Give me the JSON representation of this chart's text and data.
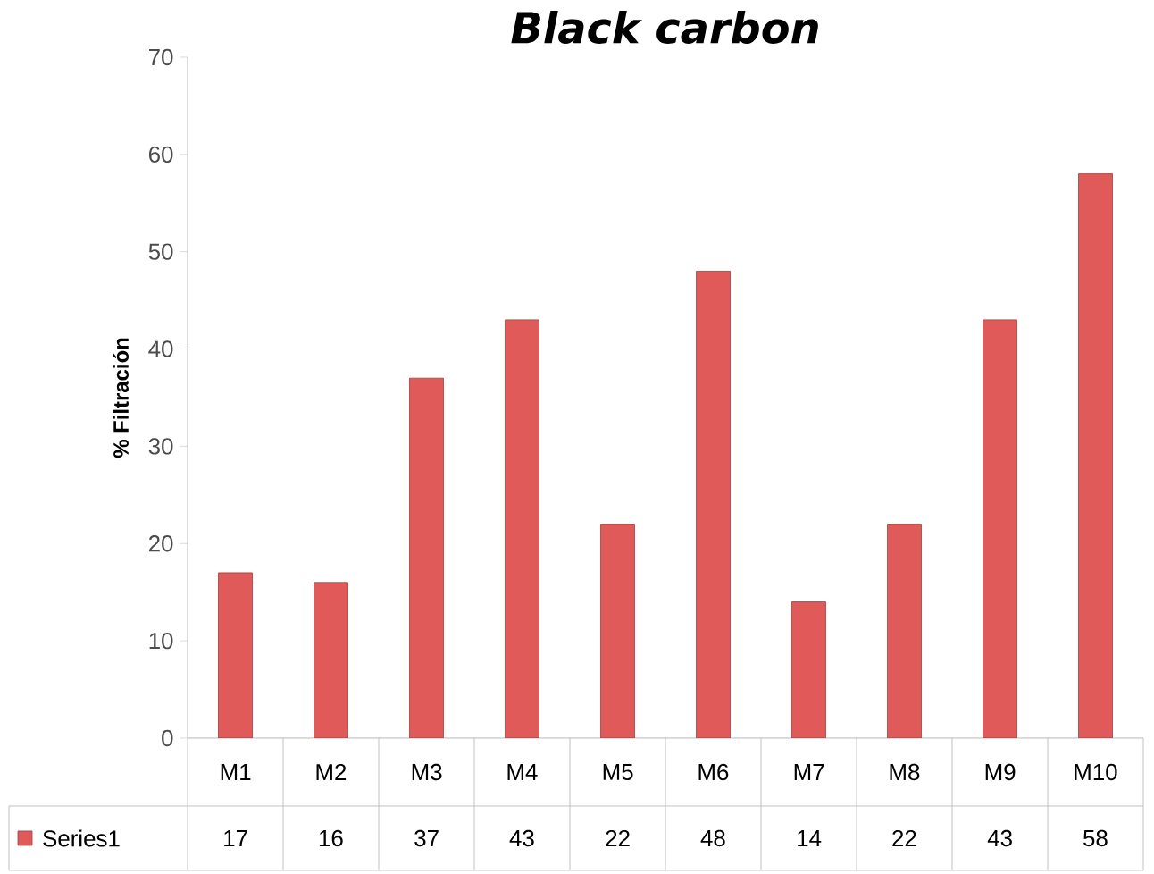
{
  "chart_data": {
    "type": "bar",
    "title": "Black carbon",
    "ylabel": "% Filtración",
    "categories": [
      "M1",
      "M2",
      "M3",
      "M4",
      "M5",
      "M6",
      "M7",
      "M8",
      "M9",
      "M10"
    ],
    "series": [
      {
        "name": "Series1",
        "color": "#e05a5a",
        "values": [
          17,
          16,
          37,
          43,
          22,
          48,
          14,
          22,
          43,
          58
        ]
      }
    ],
    "ylim": [
      0,
      70
    ],
    "yticks": [
      0,
      10,
      20,
      30,
      40,
      50,
      60,
      70
    ],
    "data_labels": true,
    "legend": "bottom",
    "grid": false
  }
}
